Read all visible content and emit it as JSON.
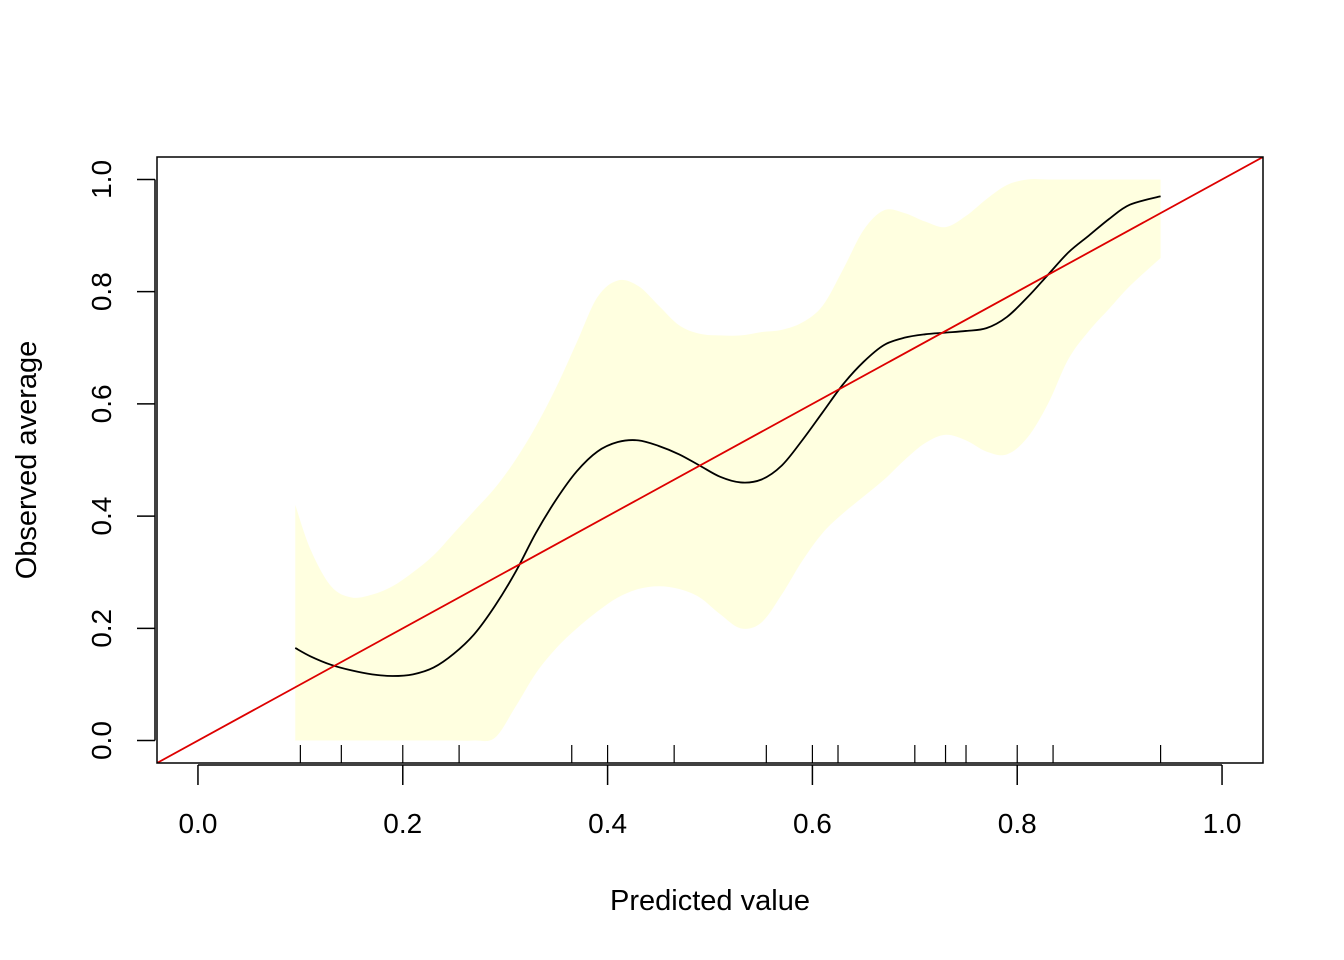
{
  "chart_data": {
    "type": "line",
    "title": "",
    "xlabel": "Predicted value",
    "ylabel": "Observed average",
    "xlim": [
      -0.04,
      1.04
    ],
    "ylim": [
      -0.04,
      1.04
    ],
    "x_ticks": [
      0.0,
      0.2,
      0.4,
      0.6,
      0.8,
      1.0
    ],
    "x_tick_labels": [
      "0.0",
      "0.2",
      "0.4",
      "0.6",
      "0.8",
      "1.0"
    ],
    "y_ticks": [
      0.0,
      0.2,
      0.4,
      0.6,
      0.8,
      1.0
    ],
    "y_tick_labels": [
      "0.0",
      "0.2",
      "0.4",
      "0.6",
      "0.8",
      "1.0"
    ],
    "grid": false,
    "legend": "none",
    "colors": {
      "curve": "#000000",
      "reference": "#dd0000",
      "band": "#ffffe0",
      "frame": "#000000"
    },
    "series": [
      {
        "kind": "smooth",
        "x": [
          0.095,
          0.11,
          0.13,
          0.15,
          0.17,
          0.19,
          0.21,
          0.23,
          0.25,
          0.27,
          0.29,
          0.31,
          0.33,
          0.35,
          0.37,
          0.39,
          0.41,
          0.43,
          0.45,
          0.47,
          0.49,
          0.51,
          0.53,
          0.55,
          0.57,
          0.59,
          0.61,
          0.63,
          0.65,
          0.67,
          0.69,
          0.71,
          0.73,
          0.75,
          0.77,
          0.79,
          0.81,
          0.83,
          0.85,
          0.87,
          0.89,
          0.91,
          0.94
        ],
        "y": [
          0.165,
          0.15,
          0.135,
          0.125,
          0.118,
          0.115,
          0.118,
          0.13,
          0.155,
          0.19,
          0.24,
          0.3,
          0.37,
          0.43,
          0.48,
          0.515,
          0.532,
          0.535,
          0.525,
          0.51,
          0.49,
          0.47,
          0.46,
          0.465,
          0.49,
          0.535,
          0.585,
          0.635,
          0.675,
          0.705,
          0.718,
          0.724,
          0.727,
          0.73,
          0.735,
          0.755,
          0.79,
          0.83,
          0.87,
          0.9,
          0.93,
          0.955,
          0.97
        ]
      },
      {
        "kind": "reference",
        "x": [
          -0.04,
          1.04
        ],
        "y": [
          -0.04,
          1.04
        ]
      }
    ],
    "band": {
      "x": [
        0.095,
        0.11,
        0.13,
        0.15,
        0.17,
        0.19,
        0.21,
        0.23,
        0.25,
        0.27,
        0.29,
        0.31,
        0.33,
        0.35,
        0.37,
        0.39,
        0.41,
        0.43,
        0.45,
        0.47,
        0.49,
        0.51,
        0.53,
        0.55,
        0.57,
        0.59,
        0.61,
        0.63,
        0.65,
        0.67,
        0.69,
        0.71,
        0.73,
        0.75,
        0.77,
        0.79,
        0.81,
        0.83,
        0.85,
        0.87,
        0.89,
        0.91,
        0.94
      ],
      "lower": [
        0.0,
        0.0,
        0.0,
        0.0,
        0.0,
        0.0,
        0.0,
        0.0,
        0.0,
        0.0,
        0.005,
        0.06,
        0.12,
        0.165,
        0.2,
        0.23,
        0.255,
        0.27,
        0.275,
        0.27,
        0.255,
        0.225,
        0.2,
        0.21,
        0.26,
        0.32,
        0.37,
        0.405,
        0.435,
        0.465,
        0.5,
        0.53,
        0.545,
        0.535,
        0.515,
        0.51,
        0.54,
        0.6,
        0.68,
        0.73,
        0.77,
        0.81,
        0.86
      ],
      "upper": [
        0.42,
        0.34,
        0.275,
        0.255,
        0.26,
        0.275,
        0.3,
        0.33,
        0.37,
        0.41,
        0.45,
        0.5,
        0.56,
        0.63,
        0.71,
        0.79,
        0.82,
        0.81,
        0.775,
        0.74,
        0.725,
        0.722,
        0.722,
        0.728,
        0.732,
        0.745,
        0.775,
        0.84,
        0.91,
        0.945,
        0.94,
        0.925,
        0.915,
        0.935,
        0.965,
        0.99,
        1.0,
        1.0,
        1.0,
        1.0,
        1.0,
        1.0,
        1.0
      ]
    },
    "rug_x": [
      0.1,
      0.14,
      0.2,
      0.255,
      0.365,
      0.4,
      0.465,
      0.555,
      0.6,
      0.625,
      0.7,
      0.73,
      0.75,
      0.8,
      0.835,
      0.94
    ]
  }
}
